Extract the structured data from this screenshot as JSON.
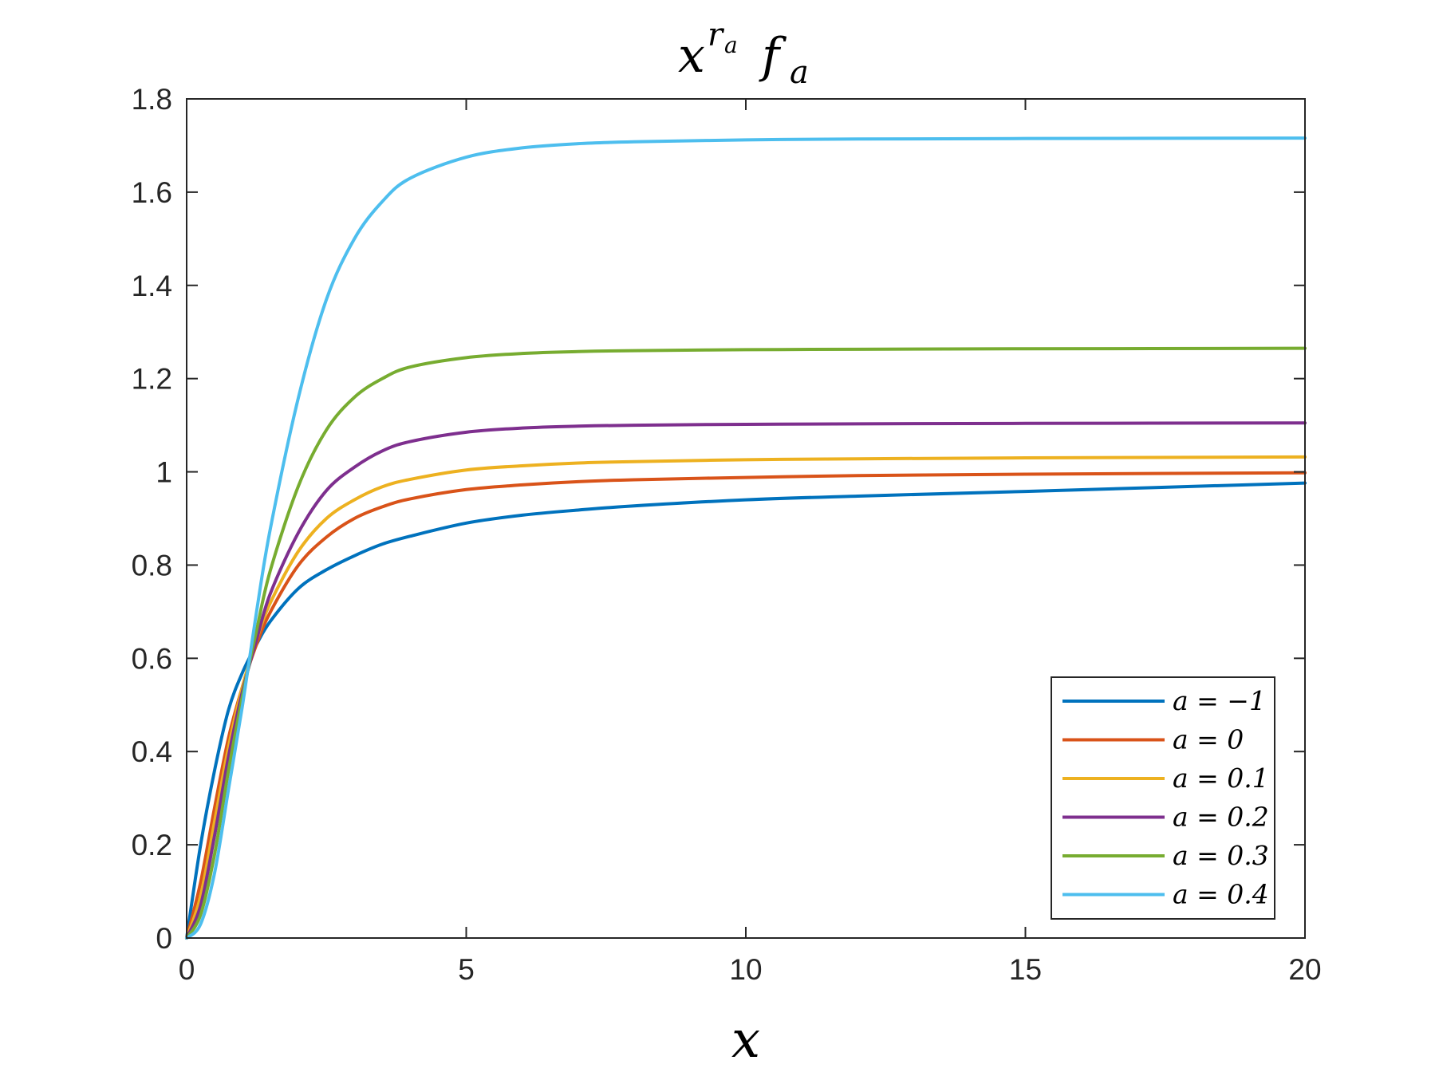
{
  "chart_data": {
    "type": "line",
    "title": "x^{r_a} f_a",
    "xlabel": "x",
    "ylabel": "",
    "xlim": [
      0,
      20
    ],
    "ylim": [
      0,
      1.8
    ],
    "xticks": [
      0,
      5,
      10,
      15,
      20
    ],
    "xtick_labels": [
      "0",
      "5",
      "10",
      "15",
      "20"
    ],
    "yticks": [
      0,
      0.2,
      0.4,
      0.6,
      0.8,
      1.0,
      1.2,
      1.4,
      1.6,
      1.8
    ],
    "ytick_labels": [
      "0",
      "0.2",
      "0.4",
      "0.6",
      "0.8",
      "1",
      "1.2",
      "1.4",
      "1.6",
      "1.8"
    ],
    "grid": false,
    "legend_position": "bottom-right",
    "x": [
      0,
      0.25,
      0.5,
      0.75,
      1,
      1.25,
      1.5,
      2,
      2.5,
      3,
      3.5,
      4,
      5,
      6,
      7,
      8,
      10,
      12,
      15,
      20
    ],
    "series": [
      {
        "name": "a = −1",
        "color": "#0072BD",
        "values": [
          0,
          0.2,
          0.36,
          0.49,
          0.57,
          0.63,
          0.68,
          0.75,
          0.79,
          0.82,
          0.845,
          0.862,
          0.89,
          0.907,
          0.918,
          0.927,
          0.94,
          0.948,
          0.958,
          0.976
        ]
      },
      {
        "name": "a = 0",
        "color": "#D95319",
        "values": [
          0,
          0.12,
          0.28,
          0.43,
          0.54,
          0.63,
          0.7,
          0.8,
          0.86,
          0.9,
          0.925,
          0.942,
          0.962,
          0.972,
          0.979,
          0.983,
          0.988,
          0.992,
          0.995,
          0.998
        ]
      },
      {
        "name": "a = 0.1",
        "color": "#EDB120",
        "values": [
          0,
          0.09,
          0.25,
          0.41,
          0.54,
          0.64,
          0.72,
          0.83,
          0.9,
          0.94,
          0.968,
          0.984,
          1.004,
          1.013,
          1.019,
          1.022,
          1.026,
          1.028,
          1.03,
          1.032
        ]
      },
      {
        "name": "a = 0.2",
        "color": "#7E2F8E",
        "values": [
          0,
          0.07,
          0.22,
          0.39,
          0.53,
          0.64,
          0.74,
          0.87,
          0.96,
          1.01,
          1.045,
          1.065,
          1.085,
          1.094,
          1.098,
          1.1,
          1.102,
          1.103,
          1.104,
          1.105
        ]
      },
      {
        "name": "a = 0.3",
        "color": "#77AC30",
        "values": [
          0,
          0.05,
          0.18,
          0.36,
          0.52,
          0.66,
          0.79,
          0.97,
          1.09,
          1.16,
          1.2,
          1.225,
          1.245,
          1.254,
          1.258,
          1.26,
          1.262,
          1.263,
          1.264,
          1.265
        ]
      },
      {
        "name": "a = 0.4",
        "color": "#4DBEEE",
        "values": [
          0,
          0.03,
          0.14,
          0.32,
          0.5,
          0.7,
          0.88,
          1.16,
          1.37,
          1.5,
          1.58,
          1.63,
          1.675,
          1.695,
          1.704,
          1.708,
          1.712,
          1.714,
          1.715,
          1.716
        ]
      }
    ]
  },
  "colors": {
    "axis": "#262626",
    "legend_border": "#262626",
    "background": "#ffffff"
  }
}
